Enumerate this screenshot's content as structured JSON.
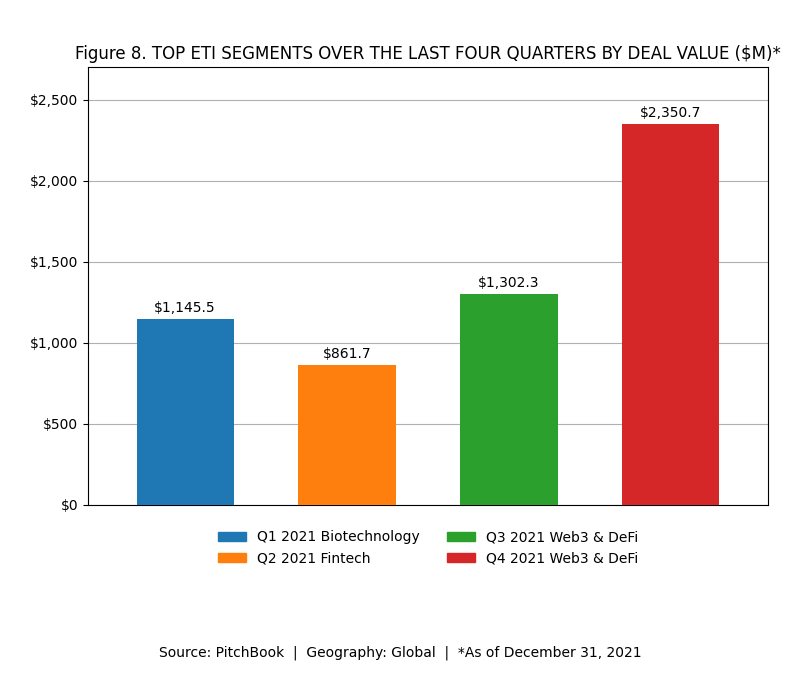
{
  "chart_data": {
    "type": "bar",
    "title": "Figure 8. TOP ETI SEGMENTS OVER THE LAST FOUR QUARTERS BY DEAL VALUE ($M)*",
    "categories": [
      "Q1 2021 Biotechnology",
      "Q2 2021 Fintech",
      "Q3 2021 Web3 & DeFi",
      "Q4 2021 Web3 & DeFi"
    ],
    "values": [
      1145.5,
      861.7,
      1302.3,
      2350.7
    ],
    "value_labels": [
      "$1,145.5",
      "$861.7",
      "$1,302.3",
      "$2,350.7"
    ],
    "data_labels": true,
    "ylim": [
      0,
      2700
    ],
    "yticks": [
      {
        "value": 0,
        "label": "$0"
      },
      {
        "value": 500,
        "label": "$500"
      },
      {
        "value": 1000,
        "label": "$1,000"
      },
      {
        "value": 1500,
        "label": "$1,500"
      },
      {
        "value": 2000,
        "label": "$2,000"
      },
      {
        "value": 2500,
        "label": "$2,500"
      }
    ],
    "grid": true,
    "tick_labels": "y",
    "legend": "lower center",
    "annotations": [
      "Source: PitchBook  |  Geography: Global  |  *As of December 31, 2021"
    ]
  }
}
